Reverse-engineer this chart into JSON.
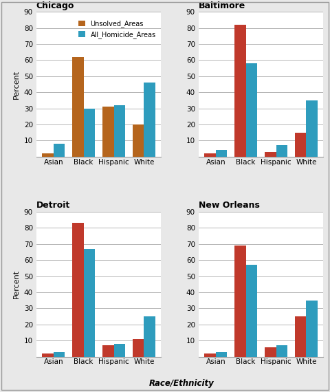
{
  "cities": [
    "Chicago",
    "Baltimore",
    "Detroit",
    "New Orleans"
  ],
  "categories": [
    "Asian",
    "Black",
    "Hispanic",
    "White"
  ],
  "unsolved": {
    "Chicago": [
      2,
      62,
      31,
      20
    ],
    "Baltimore": [
      2,
      82,
      3,
      15
    ],
    "Detroit": [
      2,
      83,
      7,
      11
    ],
    "New Orleans": [
      2,
      69,
      6,
      25
    ]
  },
  "all_homicide": {
    "Chicago": [
      8,
      30,
      32,
      46
    ],
    "Baltimore": [
      4,
      58,
      7,
      35
    ],
    "Detroit": [
      3,
      67,
      8,
      25
    ],
    "New Orleans": [
      3,
      57,
      7,
      35
    ]
  },
  "color_unsolved_chicago": "#b5651d",
  "color_unsolved_other": "#c0392b",
  "color_all": "#2e9cbd",
  "ylabel": "Percent",
  "xlabel": "Race/Ethnicity",
  "legend_labels": [
    "Unsolved_Areas",
    "All_Homicide_Areas"
  ],
  "ylim": [
    0,
    90
  ],
  "yticks": [
    10,
    20,
    30,
    40,
    50,
    60,
    70,
    80,
    90
  ],
  "bg_color": "#e8e8e8",
  "plot_bg": "#ffffff",
  "outer_bg": "#d8d8d8"
}
